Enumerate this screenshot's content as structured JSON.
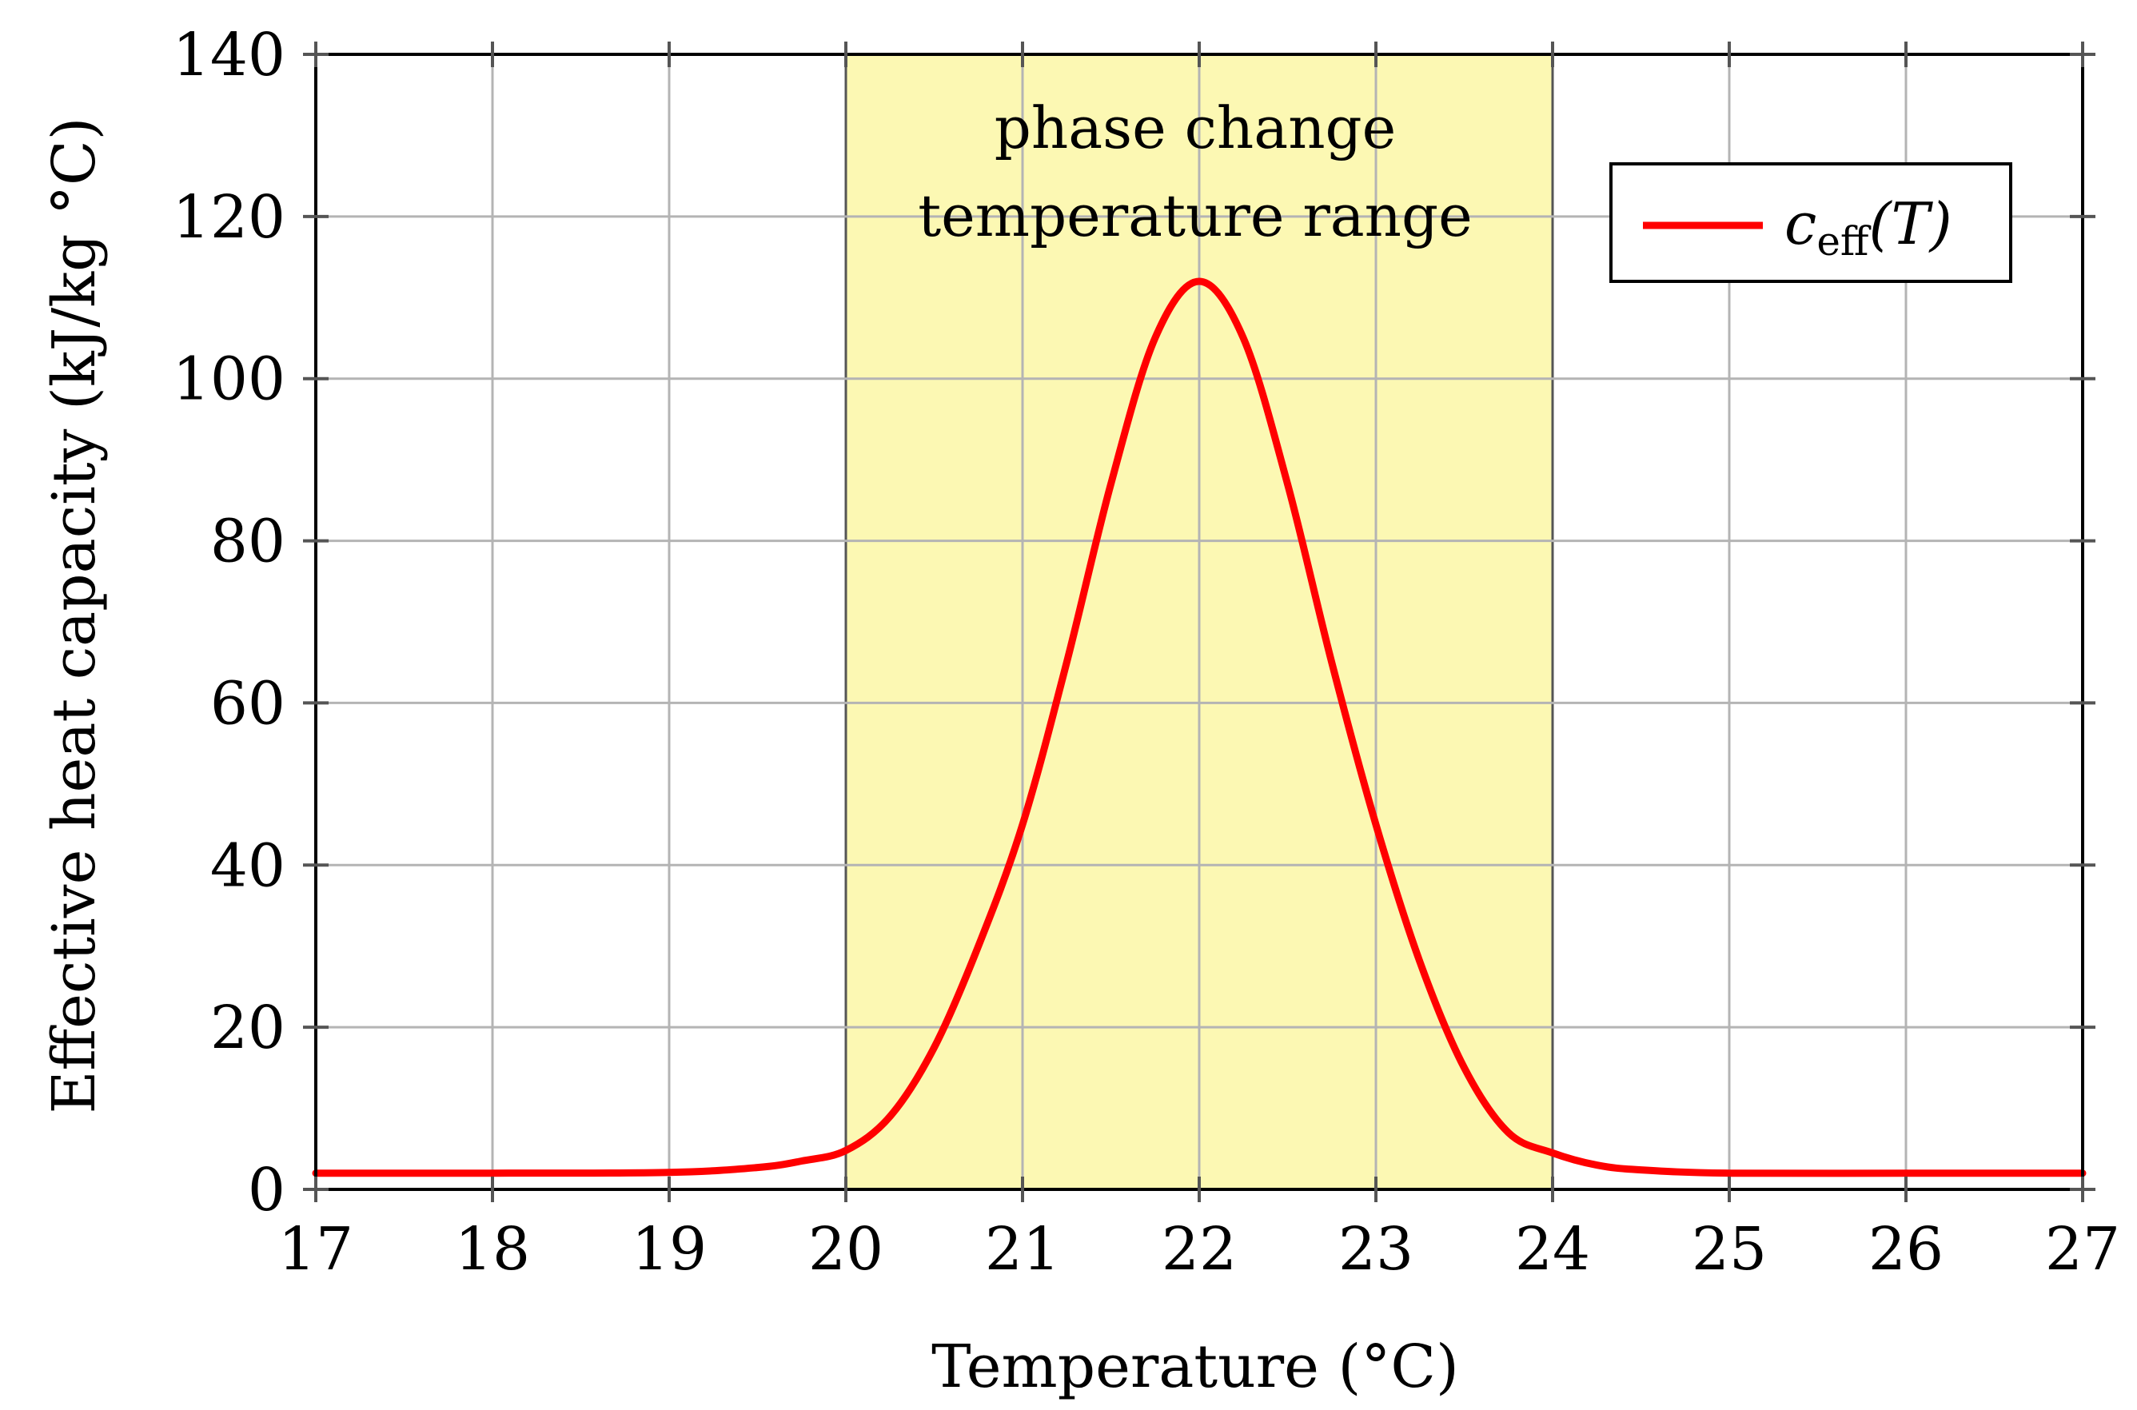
{
  "chart_data": {
    "type": "line",
    "title": "",
    "xlabel": "Temperature (°C)",
    "ylabel": "Effective heat capacity (kJ/kg °C)",
    "xlim": [
      17,
      27
    ],
    "ylim": [
      0,
      140
    ],
    "xticks": [
      17,
      18,
      19,
      20,
      21,
      22,
      23,
      24,
      25,
      26,
      27
    ],
    "yticks": [
      0,
      20,
      40,
      60,
      80,
      100,
      120,
      140
    ],
    "grid": true,
    "shaded_region": {
      "x_start": 20,
      "x_end": 24,
      "label_line1": "phase change",
      "label_line2": "temperature range",
      "color": "#fcf8b3"
    },
    "series": [
      {
        "name": "c_eff(T)",
        "legend_main": "c",
        "legend_sub": "eff",
        "legend_arg": "(T)",
        "color": "#ff0000",
        "x": [
          17,
          18,
          19,
          19.5,
          19.75,
          20,
          20.25,
          20.5,
          20.75,
          21,
          21.25,
          21.5,
          21.75,
          22,
          22.25,
          22.5,
          22.75,
          23,
          23.25,
          23.5,
          23.75,
          24,
          24.25,
          24.5,
          25,
          26,
          27
        ],
        "y": [
          2,
          2,
          2.1,
          2.7,
          3.5,
          4.8,
          9,
          17.5,
          30,
          45,
          65,
          87,
          105,
          112,
          105,
          87,
          65,
          45,
          28,
          15,
          7,
          4.5,
          3,
          2.4,
          2,
          2,
          2
        ]
      }
    ],
    "legend_position": "top-right"
  }
}
